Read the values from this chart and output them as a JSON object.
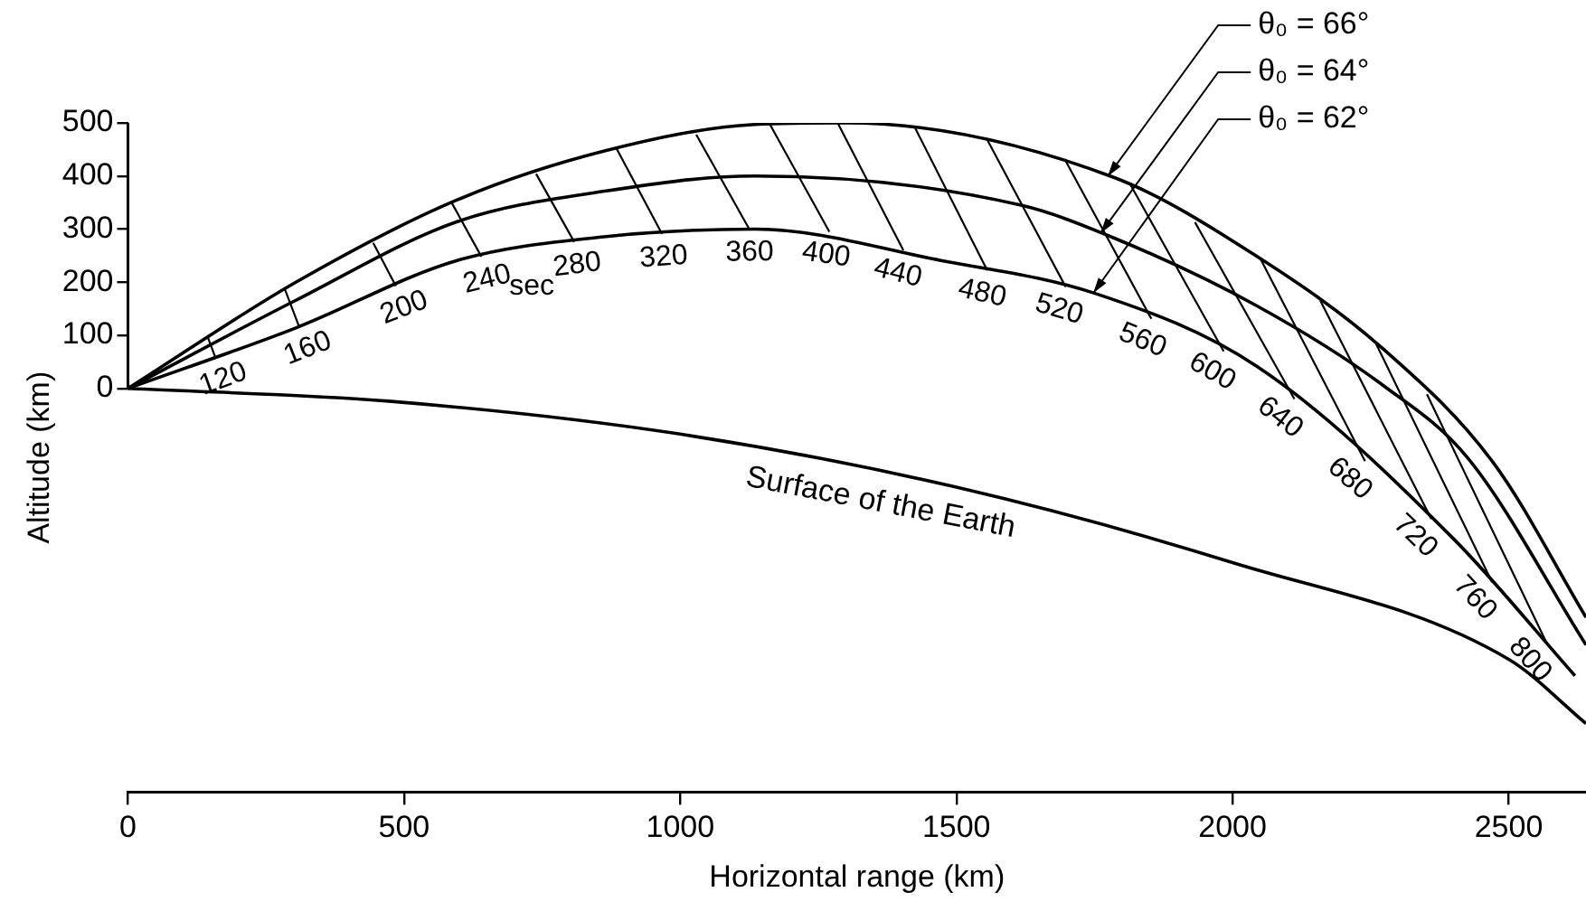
{
  "chart_data": {
    "type": "line",
    "xlabel": "Horizontal range (km)",
    "ylabel": "Altitude (km)",
    "xlim": [
      0,
      2640
    ],
    "xticks": [
      0,
      500,
      1000,
      1500,
      2000,
      2500
    ],
    "ylim": [
      -760,
      500
    ],
    "yticks": [
      0,
      100,
      200,
      300,
      400,
      500
    ],
    "grid": false,
    "legend": false,
    "marker": "none",
    "line_style": "solid",
    "series": [
      {
        "name": "θ₀ = 66°",
        "color": "#000000",
        "x": [
          0,
          304,
          596,
          866,
          1135,
          1300,
          1786,
          2045,
          2271,
          2473,
          2640
        ],
        "values": [
          0,
          200,
          355,
          448,
          497,
          500,
          397,
          248,
          76,
          -141,
          -431
        ]
      },
      {
        "name": "θ₀ = 64°",
        "color": "#000000",
        "x": [
          0,
          304,
          596,
          866,
          1135,
          1617,
          1786,
          2045,
          2271,
          2426,
          2640
        ],
        "values": [
          0,
          166,
          314,
          372,
          400,
          345,
          283,
          155,
          7,
          -131,
          -483
        ]
      },
      {
        "name": "θ₀ = 62°",
        "color": "#000000",
        "x": [
          0,
          304,
          596,
          866,
          1135,
          1472,
          1751,
          2045,
          2400,
          2620
        ],
        "values": [
          0,
          114,
          241,
          286,
          300,
          241,
          179,
          41,
          -283,
          -541
        ]
      },
      {
        "name": "Surface of the Earth",
        "color": "#000000",
        "x": [
          0,
          472,
          1000,
          1500,
          2000,
          2500,
          2640
        ],
        "values": [
          0,
          -24,
          -86,
          -186,
          -328,
          -510,
          -631
        ]
      },
      {
        "color": "#000000",
        "x": [
          145,
          158
        ],
        "values": [
          95,
          59
        ]
      },
      {
        "color": "#000000",
        "x": [
          284,
          310
        ],
        "values": [
          187,
          116
        ]
      },
      {
        "color": "#000000",
        "x": [
          444,
          485
        ],
        "values": [
          274,
          193
        ]
      },
      {
        "color": "#000000",
        "x": [
          586,
          640
        ],
        "values": [
          350,
          248
        ]
      },
      {
        "color": "#000000",
        "x": [
          739,
          808
        ],
        "values": [
          404,
          276
        ]
      },
      {
        "color": "#000000",
        "x": [
          885,
          967
        ],
        "values": [
          451,
          291
        ]
      },
      {
        "color": "#000000",
        "x": [
          1029,
          1125
        ],
        "values": [
          478,
          300
        ]
      },
      {
        "color": "#000000",
        "x": [
          1162,
          1270
        ],
        "values": [
          498,
          295
        ]
      },
      {
        "color": "#000000",
        "x": [
          1285,
          1404
        ],
        "values": [
          500,
          260
        ]
      },
      {
        "color": "#000000",
        "x": [
          1424,
          1556
        ],
        "values": [
          493,
          222
        ]
      },
      {
        "color": "#000000",
        "x": [
          1554,
          1698
        ],
        "values": [
          472,
          191
        ]
      },
      {
        "color": "#000000",
        "x": [
          1696,
          1853
        ],
        "values": [
          432,
          131
        ]
      },
      {
        "color": "#000000",
        "x": [
          1815,
          1984
        ],
        "values": [
          384,
          70
        ]
      },
      {
        "color": "#000000",
        "x": [
          1932,
          2112
        ],
        "values": [
          313,
          -20
        ]
      },
      {
        "color": "#000000",
        "x": [
          2050,
          2240
        ],
        "values": [
          245,
          -137
        ]
      },
      {
        "color": "#000000",
        "x": [
          2159,
          2360
        ],
        "values": [
          165,
          -246
        ]
      },
      {
        "color": "#000000",
        "x": [
          2260,
          2470
        ],
        "values": [
          84,
          -365
        ]
      },
      {
        "color": "#000000",
        "x": [
          2352,
          2570
        ],
        "values": [
          -11,
          -482
        ]
      }
    ],
    "annotations": [
      {
        "text": "120",
        "x": 158,
        "y": 59
      },
      {
        "text": "160",
        "x": 310,
        "y": 116
      },
      {
        "text": "200",
        "x": 485,
        "y": 193
      },
      {
        "text": "240",
        "x": 640,
        "y": 248
      },
      {
        "text": "280",
        "x": 808,
        "y": 276
      },
      {
        "text": "320",
        "x": 967,
        "y": 291
      },
      {
        "text": "360",
        "x": 1125,
        "y": 300
      },
      {
        "text": "400",
        "x": 1270,
        "y": 295
      },
      {
        "text": "440",
        "x": 1404,
        "y": 260
      },
      {
        "text": "480",
        "x": 1556,
        "y": 222
      },
      {
        "text": "520",
        "x": 1698,
        "y": 191
      },
      {
        "text": "560",
        "x": 1853,
        "y": 131
      },
      {
        "text": "600",
        "x": 1984,
        "y": 70
      },
      {
        "text": "640",
        "x": 2112,
        "y": -20
      },
      {
        "text": "680",
        "x": 2240,
        "y": -137
      },
      {
        "text": "720",
        "x": 2360,
        "y": -246
      },
      {
        "text": "760",
        "x": 2470,
        "y": -365
      },
      {
        "text": "800",
        "x": 2570,
        "y": -482
      },
      "sec"
    ]
  }
}
